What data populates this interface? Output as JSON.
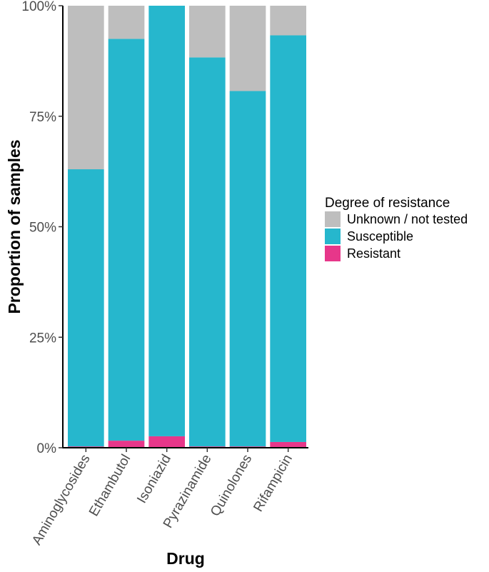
{
  "chart_data": {
    "type": "bar",
    "stacked": true,
    "categories": [
      "Aminoglycosides",
      "Ethambutol",
      "Isoniazid",
      "Pyrazinamide",
      "Quinolones",
      "Rifampicin"
    ],
    "series": [
      {
        "name": "Resistant",
        "color": "#e7378a",
        "values": [
          0.3,
          1.6,
          2.6,
          0.3,
          0.3,
          1.3
        ]
      },
      {
        "name": "Susceptible",
        "color": "#26b7cd",
        "values": [
          62.7,
          90.9,
          97.4,
          88.0,
          80.4,
          92.0
        ]
      },
      {
        "name": "Unknown / not tested",
        "color": "#bebebe",
        "values": [
          37.0,
          7.5,
          0.0,
          11.7,
          19.3,
          6.7
        ]
      }
    ],
    "ylim": [
      0,
      100
    ],
    "yticks": [
      0,
      25,
      50,
      75,
      100
    ],
    "ytick_labels": [
      "0%",
      "25%",
      "50%",
      "75%",
      "100%"
    ],
    "xlabel": "Drug",
    "ylabel": "Proportion of samples",
    "legend": {
      "title": "Degree of resistance",
      "position": "right",
      "entries": [
        "Unknown / not tested",
        "Susceptible",
        "Resistant"
      ]
    },
    "grid": false
  }
}
